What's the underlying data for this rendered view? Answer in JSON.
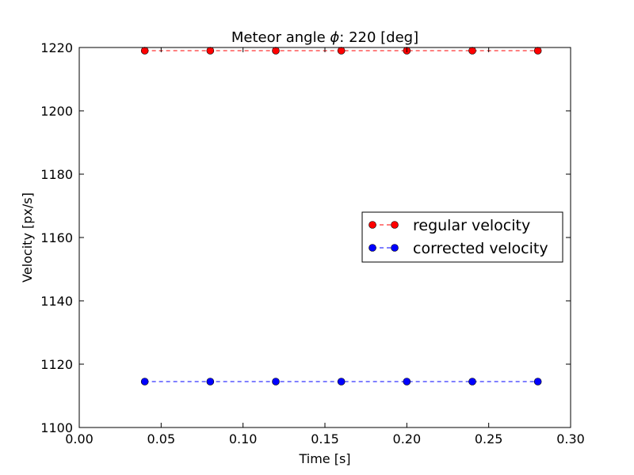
{
  "chart_data": {
    "type": "line",
    "title_prefix": "Meteor angle ",
    "title_symbol": "ϕ",
    "title_suffix": ": 220 [deg]",
    "xlabel": "Time [s]",
    "ylabel": "Velocity [px/s]",
    "xlim": [
      0.0,
      0.3
    ],
    "ylim": [
      1100,
      1220
    ],
    "xticks": [
      "0.00",
      "0.05",
      "0.10",
      "0.15",
      "0.20",
      "0.25",
      "0.30"
    ],
    "yticks": [
      "1100",
      "1120",
      "1140",
      "1160",
      "1180",
      "1200",
      "1220"
    ],
    "grid": false,
    "legend_position": "center-right",
    "x": [
      0.04,
      0.08,
      0.12,
      0.16,
      0.2,
      0.24,
      0.28
    ],
    "series": [
      {
        "name": "regular velocity",
        "color": "#ff0000",
        "values": [
          1219,
          1219,
          1219,
          1219,
          1219,
          1219,
          1219
        ]
      },
      {
        "name": "corrected velocity",
        "color": "#0000ff",
        "values": [
          1114.5,
          1114.5,
          1114.5,
          1114.5,
          1114.5,
          1114.5,
          1114.5
        ]
      }
    ]
  }
}
